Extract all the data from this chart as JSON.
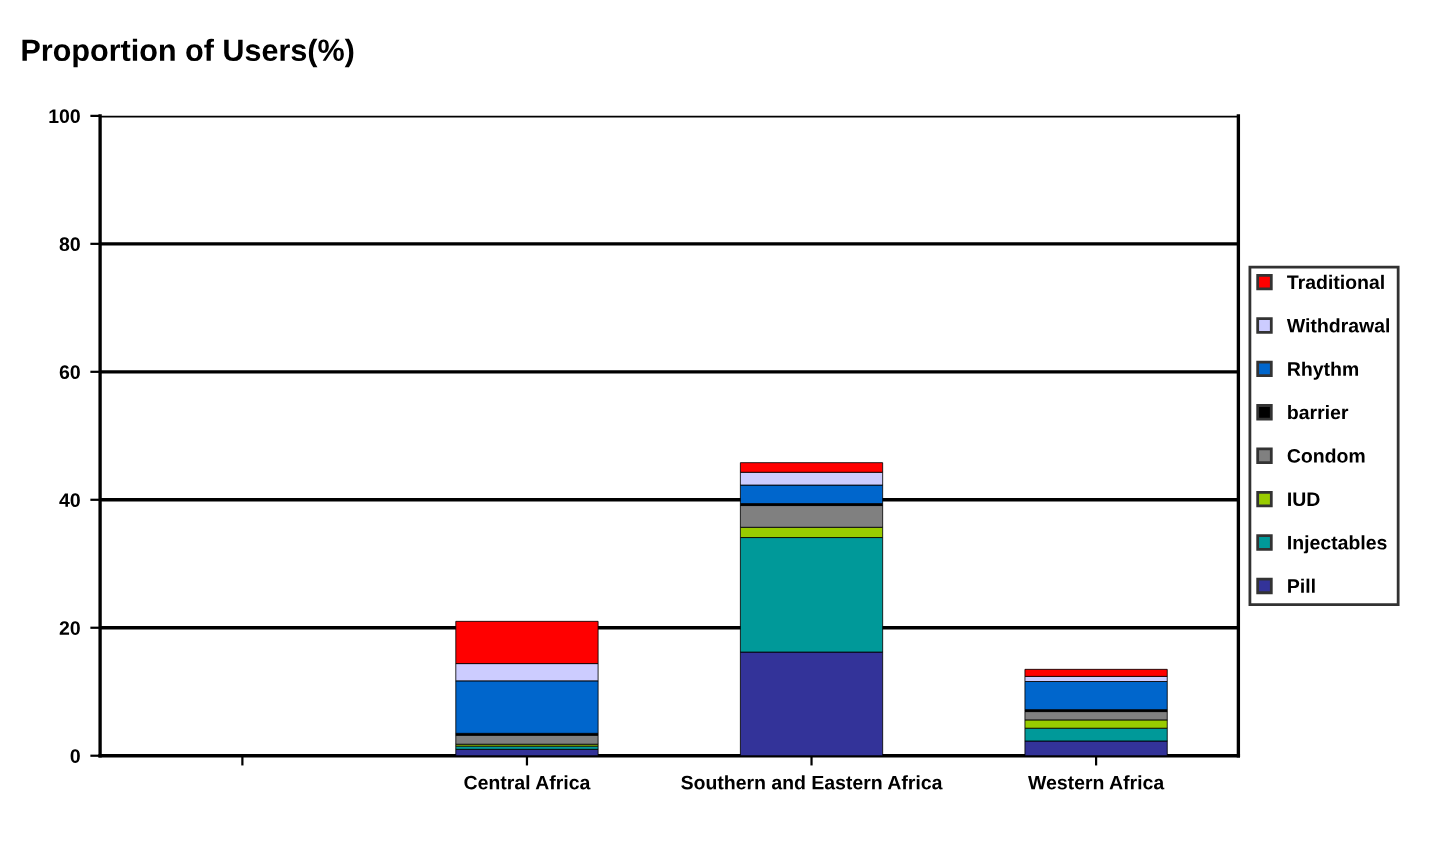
{
  "chart_data": {
    "type": "bar",
    "title": "Proportion of Users(%)",
    "stacked": true,
    "categories": [
      null,
      "Central Africa",
      "Southern and Eastern Africa",
      "Western Africa"
    ],
    "series": [
      {
        "name": "Pill",
        "color": "#333399",
        "values": [
          null,
          1.0,
          16.2,
          2.3
        ]
      },
      {
        "name": "Injectables",
        "color": "#009999",
        "values": [
          null,
          0.5,
          17.9,
          2.0
        ]
      },
      {
        "name": "IUD",
        "color": "#99cc00",
        "values": [
          null,
          0.3,
          1.6,
          1.3
        ]
      },
      {
        "name": "Condom",
        "color": "#808080",
        "values": [
          null,
          1.4,
          3.4,
          1.3
        ]
      },
      {
        "name": "barrier",
        "color": "#000000",
        "values": [
          null,
          0.3,
          0.3,
          0.3
        ]
      },
      {
        "name": "Rhythm",
        "color": "#0066cc",
        "values": [
          null,
          8.2,
          2.9,
          4.4
        ]
      },
      {
        "name": "Withdrawal",
        "color": "#ccccff",
        "values": [
          null,
          2.7,
          2.0,
          0.8
        ]
      },
      {
        "name": "Traditional",
        "color": "#ff0000",
        "values": [
          null,
          6.6,
          1.5,
          1.1
        ]
      }
    ],
    "ylim": [
      0,
      100
    ],
    "yticks": [
      0,
      20,
      40,
      60,
      80,
      100
    ],
    "grid": "y",
    "legend": "right"
  }
}
